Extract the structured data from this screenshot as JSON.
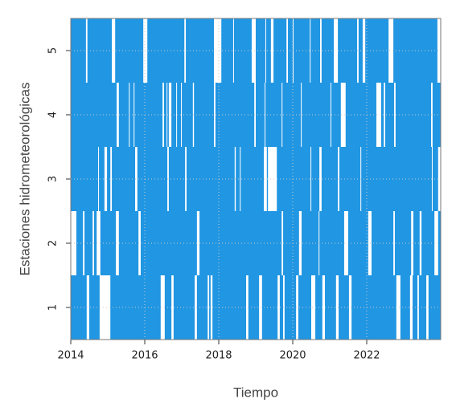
{
  "chart_data": {
    "type": "availability",
    "xlabel": "Tiempo",
    "ylabel": "Estaciones hidrometeorológicas",
    "xlim": [
      2014,
      2024
    ],
    "xticks": [
      2014,
      2016,
      2018,
      2020,
      2022
    ],
    "categories": [
      "1",
      "2",
      "3",
      "4",
      "5"
    ],
    "color": "#2196e3",
    "grid": true,
    "gaps": [
      [
        [
          2014.43,
          2014.5
        ],
        [
          2014.78,
          2015.07
        ],
        [
          2016.43,
          2016.54
        ],
        [
          2016.72,
          2016.78
        ],
        [
          2017.35,
          2017.41
        ],
        [
          2017.7,
          2017.74
        ],
        [
          2017.78,
          2017.83
        ],
        [
          2018.74,
          2018.8
        ],
        [
          2019.09,
          2019.17
        ],
        [
          2019.59,
          2019.65
        ],
        [
          2019.74,
          2019.78
        ],
        [
          2020.09,
          2020.15
        ],
        [
          2020.5,
          2020.61
        ],
        [
          2020.8,
          2020.87
        ],
        [
          2021.17,
          2021.24
        ],
        [
          2021.52,
          2021.59
        ],
        [
          2022.8,
          2022.91
        ],
        [
          2023.17,
          2023.24
        ],
        [
          2023.37,
          2023.41
        ],
        [
          2023.61,
          2023.67
        ]
      ],
      [
        [
          2014.0,
          2014.15
        ],
        [
          2014.33,
          2014.37
        ],
        [
          2014.59,
          2014.63
        ],
        [
          2014.7,
          2014.8
        ],
        [
          2015.22,
          2015.3
        ],
        [
          2015.83,
          2015.89
        ],
        [
          2017.41,
          2017.48
        ],
        [
          2019.7,
          2019.74
        ],
        [
          2020.17,
          2020.24
        ],
        [
          2020.7,
          2020.72
        ],
        [
          2021.39,
          2021.5
        ],
        [
          2022.04,
          2022.13
        ],
        [
          2022.72,
          2022.76
        ],
        [
          2023.2,
          2023.26
        ],
        [
          2023.43,
          2023.48
        ],
        [
          2023.83,
          2023.93
        ]
      ],
      [
        [
          2014.74,
          2014.76
        ],
        [
          2014.91,
          2014.98
        ],
        [
          2015.07,
          2015.11
        ],
        [
          2015.74,
          2015.8
        ],
        [
          2016.61,
          2016.65
        ],
        [
          2017.09,
          2017.13
        ],
        [
          2018.43,
          2018.46
        ],
        [
          2018.57,
          2018.59
        ],
        [
          2019.22,
          2019.3
        ],
        [
          2019.33,
          2019.57
        ],
        [
          2020.48,
          2020.5
        ],
        [
          2020.72,
          2020.78
        ],
        [
          2021.22,
          2021.26
        ],
        [
          2021.83,
          2021.85
        ],
        [
          2023.76,
          2023.78
        ],
        [
          2023.93,
          2024.0
        ]
      ],
      [
        [
          2015.24,
          2015.3
        ],
        [
          2015.57,
          2015.59
        ],
        [
          2015.7,
          2015.72
        ],
        [
          2016.48,
          2016.52
        ],
        [
          2016.59,
          2016.61
        ],
        [
          2016.65,
          2016.72
        ],
        [
          2016.85,
          2016.87
        ],
        [
          2016.98,
          2017.0
        ],
        [
          2017.3,
          2017.33
        ],
        [
          2017.87,
          2017.91
        ],
        [
          2018.96,
          2019.0
        ],
        [
          2019.24,
          2019.26
        ],
        [
          2019.7,
          2019.72
        ],
        [
          2020.22,
          2020.24
        ],
        [
          2021.02,
          2021.04
        ],
        [
          2021.3,
          2021.43
        ],
        [
          2022.26,
          2022.39
        ],
        [
          2022.46,
          2022.5
        ],
        [
          2022.74,
          2022.78
        ],
        [
          2023.74,
          2023.78
        ]
      ],
      [
        [
          2014.41,
          2014.45
        ],
        [
          2015.11,
          2015.2
        ],
        [
          2015.96,
          2016.07
        ],
        [
          2017.07,
          2017.11
        ],
        [
          2017.87,
          2018.07
        ],
        [
          2018.39,
          2018.41
        ],
        [
          2018.89,
          2019.0
        ],
        [
          2019.26,
          2019.28
        ],
        [
          2019.41,
          2019.48
        ],
        [
          2019.83,
          2019.87
        ],
        [
          2020.0,
          2020.02
        ],
        [
          2020.46,
          2020.48
        ],
        [
          2020.74,
          2020.78
        ],
        [
          2021.11,
          2021.22
        ],
        [
          2021.74,
          2021.78
        ],
        [
          2021.89,
          2021.96
        ],
        [
          2022.59,
          2022.72
        ],
        [
          2023.91,
          2024.0
        ]
      ]
    ]
  }
}
